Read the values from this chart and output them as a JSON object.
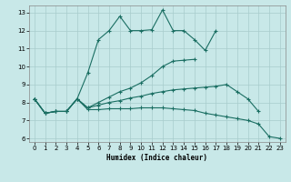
{
  "xlabel": "Humidex (Indice chaleur)",
  "bg_color": "#c8e8e8",
  "grid_color": "#a8cccc",
  "line_color": "#1a6e62",
  "xlim": [
    -0.5,
    23.5
  ],
  "ylim": [
    5.8,
    13.4
  ],
  "xticks": [
    0,
    1,
    2,
    3,
    4,
    5,
    6,
    7,
    8,
    9,
    10,
    11,
    12,
    13,
    14,
    15,
    16,
    17,
    18,
    19,
    20,
    21,
    22,
    23
  ],
  "yticks": [
    6,
    7,
    8,
    9,
    10,
    11,
    12,
    13
  ],
  "series": [
    {
      "x": [
        0,
        1,
        2,
        3,
        4,
        5,
        6,
        7,
        8,
        9,
        10,
        11,
        12,
        13,
        14,
        15,
        16,
        17,
        18,
        19,
        20,
        21,
        22,
        23
      ],
      "y": [
        8.2,
        7.4,
        7.5,
        7.5,
        8.2,
        7.6,
        7.6,
        7.65,
        7.65,
        7.65,
        7.7,
        7.7,
        7.7,
        7.65,
        7.6,
        7.55,
        7.4,
        7.3,
        7.2,
        7.1,
        7.0,
        6.8,
        6.1,
        6.0
      ]
    },
    {
      "x": [
        0,
        1,
        2,
        3,
        4,
        5,
        6,
        7,
        8,
        9,
        10,
        11,
        12,
        13,
        14,
        15,
        16,
        17,
        18,
        19,
        20,
        21,
        22
      ],
      "y": [
        8.2,
        7.4,
        7.5,
        7.5,
        8.2,
        7.7,
        7.85,
        8.0,
        8.1,
        8.25,
        8.35,
        8.5,
        8.6,
        8.7,
        8.75,
        8.8,
        8.85,
        8.9,
        9.0,
        8.6,
        8.2,
        7.5,
        null
      ]
    },
    {
      "x": [
        0,
        1,
        2,
        3,
        4,
        5,
        6,
        7,
        8,
        9,
        10,
        11,
        12,
        13,
        14,
        15,
        16,
        17,
        18,
        19,
        20
      ],
      "y": [
        8.2,
        7.4,
        7.5,
        7.5,
        8.2,
        7.7,
        8.0,
        8.3,
        8.6,
        8.8,
        9.1,
        9.5,
        10.0,
        10.3,
        10.35,
        10.4,
        null,
        null,
        null,
        null,
        null
      ]
    },
    {
      "x": [
        0,
        1,
        2,
        3,
        4,
        5,
        6,
        7,
        8,
        9,
        10,
        11,
        12,
        13,
        14,
        15,
        16,
        17
      ],
      "y": [
        8.2,
        7.4,
        7.5,
        7.5,
        8.2,
        9.65,
        11.5,
        12.0,
        12.8,
        12.0,
        12.0,
        12.05,
        13.15,
        12.0,
        12.0,
        11.5,
        10.9,
        12.0
      ]
    }
  ]
}
